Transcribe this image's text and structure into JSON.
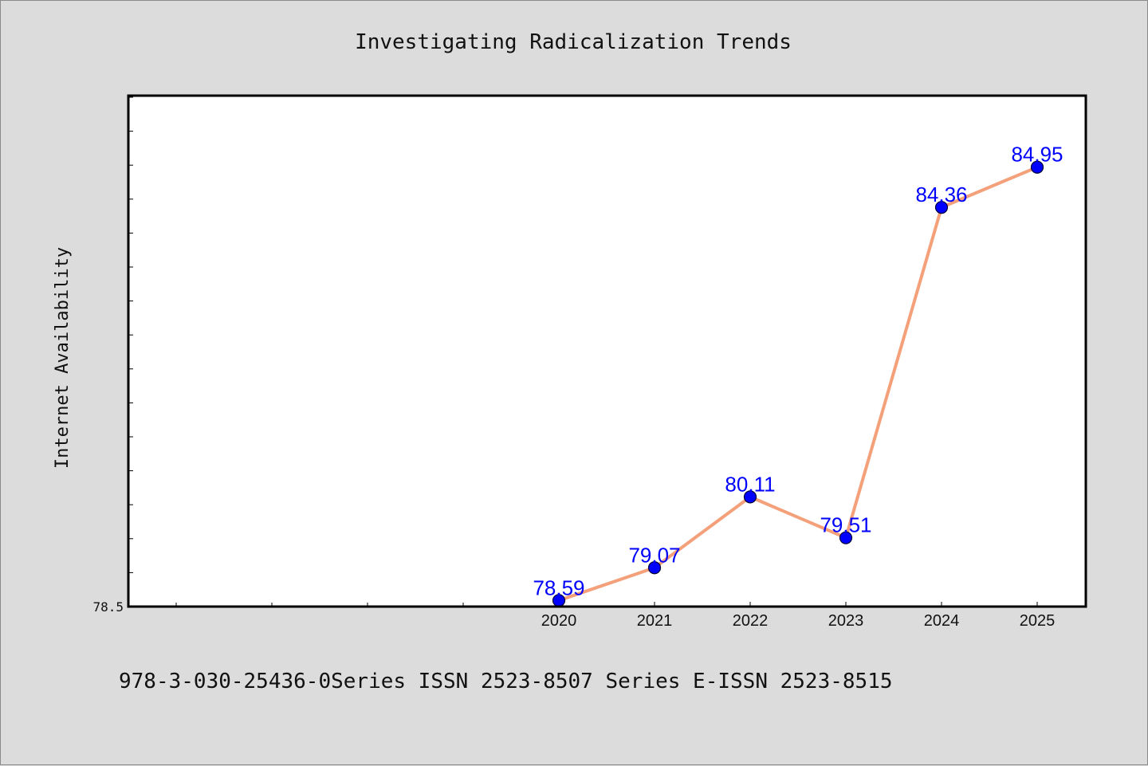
{
  "chart_data": {
    "type": "line",
    "title": "Investigating Radicalization Trends",
    "xlabel": "",
    "ylabel": "Internet Availability",
    "x": [
      "2020",
      "2021",
      "2022",
      "2023",
      "2024",
      "2025"
    ],
    "series": [
      {
        "values": [
          78.59,
          79.07,
          80.11,
          79.51,
          84.36,
          84.95
        ]
      }
    ],
    "data_labels": [
      "78.59",
      "79.07",
      "80.11",
      "79.51",
      "84.36",
      "84.95"
    ],
    "y_tick_labels": [
      "78.5"
    ],
    "ylim": [
      78.5,
      86.0
    ],
    "grid": false,
    "legend": "none",
    "colors": {
      "line": "#f4a07a",
      "marker": "#0000ff",
      "marker_edge": "#000033",
      "data_label": "#0000ff",
      "plot_background": "#ffffff",
      "page_background": "#dcdcdc"
    }
  },
  "footer": {
    "text": "978-3-030-25436-0Series ISSN 2523-8507 Series E-ISSN 2523-8515"
  }
}
